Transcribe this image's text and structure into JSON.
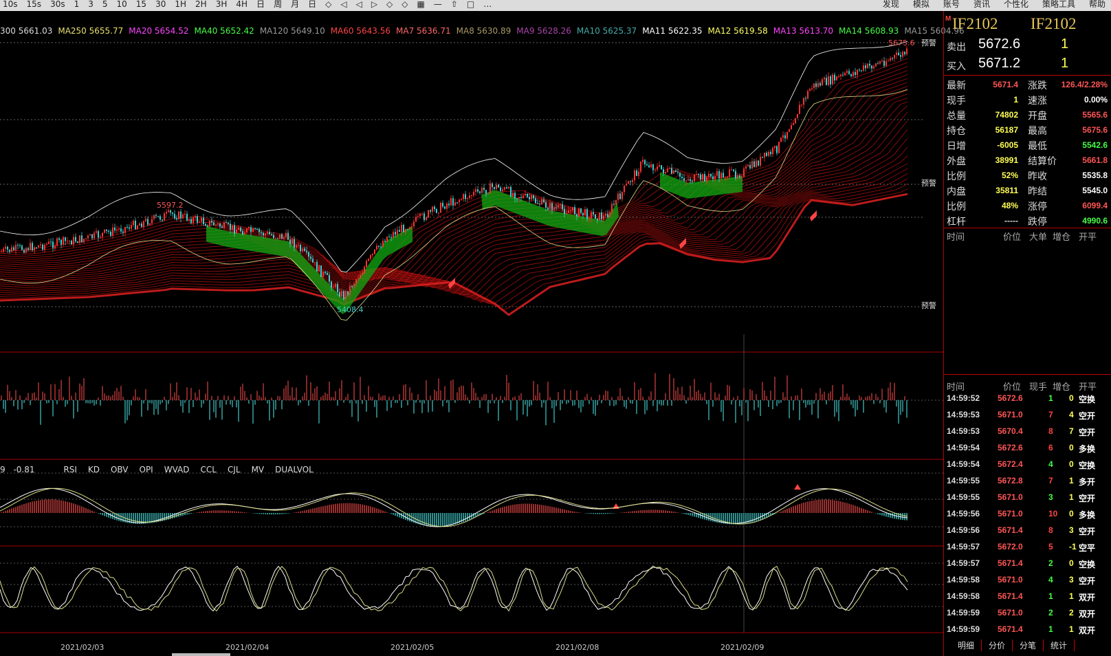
{
  "toolbar": {
    "left_items": [
      "10s",
      "15s",
      "30s",
      "1",
      "3",
      "5",
      "10",
      "15",
      "30",
      "1H",
      "2H",
      "3H",
      "4H",
      "日",
      "周",
      "月",
      "日",
      "◇",
      "◁",
      "◁",
      "▷",
      "◇",
      "◇",
      "▦",
      "—",
      "⇧",
      "□",
      "…"
    ],
    "right_items": [
      "发现",
      "模拟",
      "账号",
      "资讯",
      "个性化",
      "策略工具",
      "帮助"
    ]
  },
  "ma_bar": [
    {
      "text": "300 5661.03",
      "color": "#dddddd"
    },
    {
      "text": "MA250 5655.77",
      "color": "#e8e070"
    },
    {
      "text": "MA20 5654.52",
      "color": "#ff44ff"
    },
    {
      "text": "MA40 5652.42",
      "color": "#44ff44"
    },
    {
      "text": "MA120 5649.10",
      "color": "#999999"
    },
    {
      "text": "MA60 5643.56",
      "color": "#ff4444"
    },
    {
      "text": "MA7 5636.71",
      "color": "#ff6666"
    },
    {
      "text": "MA8 5630.89",
      "color": "#aa9966"
    },
    {
      "text": "MA9 5628.26",
      "color": "#aa44aa"
    },
    {
      "text": "MA10 5625.37",
      "color": "#44aaaa"
    },
    {
      "text": "MA11 5622.35",
      "color": "#ffffff"
    },
    {
      "text": "MA12 5619.58",
      "color": "#ffff66"
    },
    {
      "text": "MA13 5613.70",
      "color": "#ff44ff"
    },
    {
      "text": "MA14 5608.93",
      "color": "#44ff44"
    },
    {
      "text": "MA15 5604.96",
      "color": "#999999"
    }
  ],
  "chart_annotations": {
    "high_label": "5597.2",
    "low_label": "5408.4",
    "top_label": "5675.6",
    "alert_label": "预警"
  },
  "indicator": {
    "value1": "9",
    "value2": "-0.81",
    "tabs": [
      "RSI",
      "KD",
      "OBV",
      "OPI",
      "WVAD",
      "CCL",
      "CJL",
      "MV",
      "DUALVOL"
    ]
  },
  "x_axis": [
    "2021/02/03",
    "2021/02/04",
    "2021/02/05",
    "2021/02/08",
    "2021/02/09"
  ],
  "right_panel": {
    "code1": "IF2102",
    "code2": "IF2102",
    "marker": "M",
    "sell": {
      "label": "卖出",
      "price": "5672.6",
      "qty": "1"
    },
    "buy": {
      "label": "买入",
      "price": "5671.2",
      "qty": "1"
    },
    "stats_left": [
      {
        "label": "最新",
        "value": "5671.4",
        "color": "#ff5555"
      },
      {
        "label": "现手",
        "value": "1",
        "color": "#ffff55"
      },
      {
        "label": "总量",
        "value": "74802",
        "color": "#ffff55"
      },
      {
        "label": "持仓",
        "value": "56187",
        "color": "#ffff55"
      },
      {
        "label": "日增",
        "value": "-6005",
        "color": "#ffff55"
      },
      {
        "label": "外盘",
        "value": "38991",
        "color": "#ffff55"
      },
      {
        "label": "比例",
        "value": "52%",
        "color": "#ffff55"
      },
      {
        "label": "内盘",
        "value": "35811",
        "color": "#ffff55"
      },
      {
        "label": "比例",
        "value": "48%",
        "color": "#ffff55"
      },
      {
        "label": "杠杆",
        "value": "-----",
        "color": "#dddddd"
      }
    ],
    "stats_right": [
      {
        "label": "涨跌",
        "value": "126.4/2.28%",
        "color": "#ff5555"
      },
      {
        "label": "速涨",
        "value": "0.00%",
        "color": "#ffffff"
      },
      {
        "label": "开盘",
        "value": "5565.6",
        "color": "#ff5555"
      },
      {
        "label": "最高",
        "value": "5675.6",
        "color": "#ff5555"
      },
      {
        "label": "最低",
        "value": "5542.6",
        "color": "#44ff44"
      },
      {
        "label": "结算价",
        "value": "5661.8",
        "color": "#ff5555"
      },
      {
        "label": "昨收",
        "value": "5535.8",
        "color": "#ffffff"
      },
      {
        "label": "昨结",
        "value": "5545.0",
        "color": "#ffffff"
      },
      {
        "label": "涨停",
        "value": "6099.4",
        "color": "#ff5555"
      },
      {
        "label": "跌停",
        "value": "4990.6",
        "color": "#44ff44"
      }
    ],
    "headers": [
      "时间",
      "价位",
      "大单",
      "增仓",
      "开平"
    ],
    "trade_headers": [
      "时间",
      "价位",
      "现手",
      "增仓",
      "开平"
    ],
    "trades": [
      {
        "time": "14:59:52",
        "price": "5672.6",
        "qty": "1",
        "inc": "0",
        "type": "空换"
      },
      {
        "time": "14:59:53",
        "price": "5671.0",
        "qty": "7",
        "inc": "4",
        "type": "空开"
      },
      {
        "time": "14:59:53",
        "price": "5670.4",
        "qty": "8",
        "inc": "7",
        "type": "空开"
      },
      {
        "time": "14:59:54",
        "price": "5672.6",
        "qty": "6",
        "inc": "0",
        "type": "多换"
      },
      {
        "time": "14:59:54",
        "price": "5672.4",
        "qty": "4",
        "inc": "0",
        "type": "空换"
      },
      {
        "time": "14:59:55",
        "price": "5672.8",
        "qty": "7",
        "inc": "1",
        "type": "多开"
      },
      {
        "time": "14:59:55",
        "price": "5671.0",
        "qty": "3",
        "inc": "1",
        "type": "空开"
      },
      {
        "time": "14:59:56",
        "price": "5671.0",
        "qty": "10",
        "inc": "0",
        "type": "多换"
      },
      {
        "time": "14:59:56",
        "price": "5671.4",
        "qty": "8",
        "inc": "3",
        "type": "空开"
      },
      {
        "time": "14:59:57",
        "price": "5672.0",
        "qty": "5",
        "inc": "-1",
        "type": "空平"
      },
      {
        "time": "14:59:57",
        "price": "5671.4",
        "qty": "2",
        "inc": "0",
        "type": "空换"
      },
      {
        "time": "14:59:58",
        "price": "5671.0",
        "qty": "4",
        "inc": "3",
        "type": "空开"
      },
      {
        "time": "14:59:58",
        "price": "5671.4",
        "qty": "1",
        "inc": "1",
        "type": "双开"
      },
      {
        "time": "14:59:59",
        "price": "5671.0",
        "qty": "2",
        "inc": "2",
        "type": "双开"
      },
      {
        "time": "14:59:59",
        "price": "5671.4",
        "qty": "1",
        "inc": "1",
        "type": "双开"
      }
    ],
    "bottom_tabs": [
      "明细",
      "分价",
      "分笔",
      "统计"
    ]
  },
  "colors": {
    "up": "#ff3333",
    "down": "#44cccc",
    "ma": "#dd2222",
    "green": "#00cc00",
    "grid": "#aa0000"
  }
}
